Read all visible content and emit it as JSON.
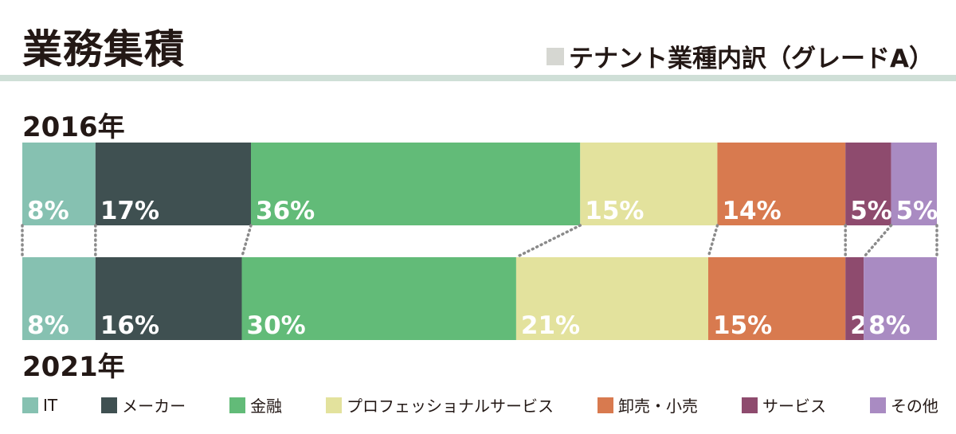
{
  "header": {
    "title": "業務集積",
    "subtitle": "テナント業種内訳（グレードA）"
  },
  "chart_data": {
    "type": "bar",
    "orientation": "horizontal-stacked-100",
    "categories": [
      "2016年",
      "2021年"
    ],
    "series": [
      {
        "name": "IT",
        "color": "#86c1b1",
        "values": [
          8,
          8
        ],
        "labels": [
          "8%",
          "8%"
        ]
      },
      {
        "name": "メーカー",
        "color": "#3f5051",
        "values": [
          17,
          16
        ],
        "labels": [
          "17%",
          "16%"
        ]
      },
      {
        "name": "金融",
        "color": "#62bb78",
        "values": [
          36,
          30
        ],
        "labels": [
          "36%",
          "30%"
        ]
      },
      {
        "name": "プロフェッショナルサービス",
        "color": "#e3e29d",
        "values": [
          15,
          21
        ],
        "labels": [
          "15%",
          "21%"
        ]
      },
      {
        "name": "卸売・小売",
        "color": "#d87a4f",
        "values": [
          14,
          15
        ],
        "labels": [
          "14%",
          "15%"
        ]
      },
      {
        "name": "サービス",
        "color": "#8e4b6e",
        "values": [
          5,
          2
        ],
        "labels": [
          "5%",
          "2%"
        ]
      },
      {
        "name": "その他",
        "color": "#a98bc2",
        "values": [
          5,
          8
        ],
        "labels": [
          "5%",
          "8%"
        ]
      }
    ],
    "legend_position": "bottom",
    "connector_style": "dotted"
  }
}
